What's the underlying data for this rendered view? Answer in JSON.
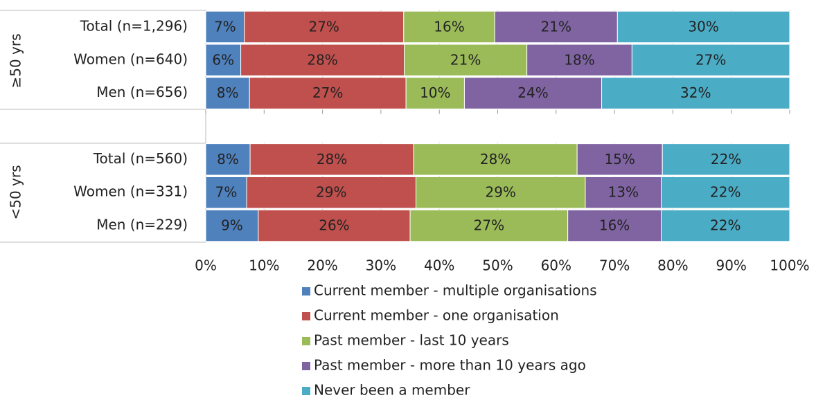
{
  "chart_data": {
    "type": "stacked_barh",
    "categories": [
      "Total (n=1,296)",
      "Women (n=640)",
      "Men (n=656)",
      null,
      "Total (n=560)",
      "Women (n=331)",
      "Men (n=229)"
    ],
    "group_labels": [
      "≥50 yrs",
      "<50 yrs"
    ],
    "series": [
      {
        "name": "Current member - multiple organisations",
        "color": "#4f81bd",
        "values": [
          6.6,
          6,
          7.5,
          null,
          7.6,
          7,
          9
        ],
        "value_labels": [
          "7%",
          "6%",
          "8%",
          null,
          "8%",
          "7%",
          "9%"
        ]
      },
      {
        "name": "Current member - one organisation",
        "color": "#c0504d",
        "values": [
          27.3,
          28,
          26.8,
          null,
          28.0,
          29,
          26
        ],
        "value_labels": [
          "27%",
          "28%",
          "27%",
          null,
          "28%",
          "29%",
          "26%"
        ]
      },
      {
        "name": "Past member - last 10 years",
        "color": "#9bbb59",
        "values": [
          15.6,
          21,
          10.0,
          null,
          28.0,
          29,
          27
        ],
        "value_labels": [
          "16%",
          "21%",
          "10%",
          null,
          "28%",
          "29%",
          "27%"
        ]
      },
      {
        "name": "Past member - more than 10 years ago",
        "color": "#8064a2",
        "values": [
          21.0,
          18,
          23.5,
          null,
          14.6,
          13,
          16
        ],
        "value_labels": [
          "21%",
          "18%",
          "24%",
          null,
          "15%",
          "13%",
          "16%"
        ]
      },
      {
        "name": "Never been a member",
        "color": "#4bacc6",
        "values": [
          29.5,
          27,
          32.2,
          null,
          21.8,
          22,
          22
        ],
        "value_labels": [
          "30%",
          "27%",
          "32%",
          null,
          "22%",
          "22%",
          "22%"
        ]
      }
    ],
    "xlim": [
      0,
      100
    ],
    "xticks": [
      {
        "value": 0,
        "label": "0%"
      },
      {
        "value": 10,
        "label": "10%"
      },
      {
        "value": 20,
        "label": "20%"
      },
      {
        "value": 30,
        "label": "30%"
      },
      {
        "value": 40,
        "label": "40%"
      },
      {
        "value": 50,
        "label": "50%"
      },
      {
        "value": 60,
        "label": "60%"
      },
      {
        "value": 70,
        "label": "70%"
      },
      {
        "value": 80,
        "label": "80%"
      },
      {
        "value": 90,
        "label": "90%"
      },
      {
        "value": 100,
        "label": "100%"
      }
    ],
    "legend": "bottom"
  }
}
